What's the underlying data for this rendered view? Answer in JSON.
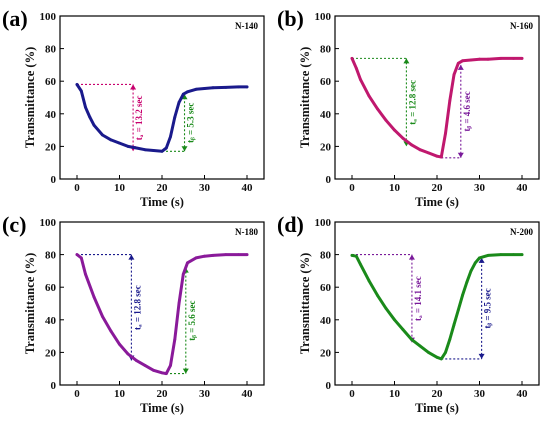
{
  "chart_data": [
    {
      "type": "line",
      "panel_label": "(a)",
      "sample": "N-140",
      "xlabel": "Time (s)",
      "ylabel": "Transmittance (%)",
      "xlim": [
        -4,
        44
      ],
      "ylim": [
        0,
        100
      ],
      "xticks": [
        0,
        10,
        20,
        30,
        40
      ],
      "yticks": [
        0,
        20,
        40,
        60,
        80,
        100
      ],
      "color": "#1a1a8c",
      "x": [
        0,
        1,
        2,
        3,
        4,
        6,
        8,
        10,
        12,
        14,
        16,
        18,
        20,
        21,
        22,
        23,
        24,
        25,
        26,
        28,
        30,
        32,
        35,
        38,
        40
      ],
      "y": [
        58,
        54,
        44,
        38,
        33,
        27,
        24,
        22,
        20,
        19,
        18,
        17.5,
        17,
        19,
        26,
        38,
        47,
        52,
        53.5,
        55,
        55.5,
        56,
        56.2,
        56.5,
        56.5
      ],
      "annotations": [
        {
          "text": "tₐ = 13.2 sec",
          "color": "#c8006e",
          "hline": {
            "x1": 0,
            "x2": 13.2,
            "y": 58
          },
          "vline": {
            "x": 13.2,
            "y1": 58,
            "y2": 17
          }
        },
        {
          "text": "tᵦ = 5.3 sec",
          "color": "#1a8a1a",
          "hline": {
            "x1": 20,
            "x2": 25.3,
            "y": 17
          },
          "vline": {
            "x": 25.3,
            "y1": 17,
            "y2": 52
          }
        }
      ]
    },
    {
      "type": "line",
      "panel_label": "(b)",
      "sample": "N-160",
      "xlabel": "Time (s)",
      "ylabel": "Transmittance (%)",
      "xlim": [
        -4,
        44
      ],
      "ylim": [
        0,
        100
      ],
      "xticks": [
        0,
        10,
        20,
        30,
        40
      ],
      "yticks": [
        0,
        20,
        40,
        60,
        80,
        100
      ],
      "color": "#c0186e",
      "x": [
        0,
        1,
        2,
        4,
        6,
        8,
        10,
        12,
        14,
        16,
        18,
        20,
        21,
        22,
        23,
        24,
        25,
        26,
        28,
        30,
        32,
        35,
        38,
        40
      ],
      "y": [
        74,
        68,
        61,
        51,
        43,
        36,
        30,
        25,
        21,
        18,
        16,
        14,
        13.5,
        28,
        48,
        64,
        71,
        72.5,
        73,
        73.5,
        73.5,
        74,
        74,
        74
      ],
      "annotations": [
        {
          "text": "tₐ = 12.8 sec",
          "color": "#1a8a1a",
          "hline": {
            "x1": 0,
            "x2": 12.8,
            "y": 74
          },
          "vline": {
            "x": 12.8,
            "y1": 74,
            "y2": 20
          }
        },
        {
          "text": "tᵦ = 4.6 sec",
          "color": "#7a1a9a",
          "hline": {
            "x1": 21,
            "x2": 25.6,
            "y": 13
          },
          "vline": {
            "x": 25.6,
            "y1": 13,
            "y2": 70
          }
        }
      ]
    },
    {
      "type": "line",
      "panel_label": "(c)",
      "sample": "N-180",
      "xlabel": "Time (s)",
      "ylabel": "Transmittance (%)",
      "xlim": [
        -4,
        44
      ],
      "ylim": [
        0,
        100
      ],
      "xticks": [
        0,
        10,
        20,
        30,
        40
      ],
      "yticks": [
        0,
        20,
        40,
        60,
        80,
        100
      ],
      "color": "#8a1a9a",
      "x": [
        0,
        1,
        2,
        4,
        6,
        8,
        10,
        12,
        14,
        16,
        18,
        20,
        21,
        22,
        23,
        24,
        25,
        26,
        28,
        30,
        32,
        35,
        38,
        40
      ],
      "y": [
        80,
        78,
        68,
        54,
        42,
        33,
        25,
        19,
        15,
        12,
        9,
        7.5,
        7,
        12,
        28,
        50,
        68,
        75,
        78,
        79,
        79.5,
        80,
        80,
        80
      ],
      "annotations": [
        {
          "text": "tₐ = 12.8 sec",
          "color": "#1a1a8c",
          "hline": {
            "x1": 0,
            "x2": 12.8,
            "y": 80
          },
          "vline": {
            "x": 12.8,
            "y1": 80,
            "y2": 15
          }
        },
        {
          "text": "tᵦ = 5.6 sec",
          "color": "#1a8a1a",
          "hline": {
            "x1": 20,
            "x2": 25.6,
            "y": 7
          },
          "vline": {
            "x": 25.6,
            "y1": 7,
            "y2": 72
          }
        }
      ]
    },
    {
      "type": "line",
      "panel_label": "(d)",
      "sample": "N-200",
      "xlabel": "Time (s)",
      "ylabel": "Transmittance (%)",
      "xlim": [
        -4,
        44
      ],
      "ylim": [
        0,
        100
      ],
      "xticks": [
        0,
        10,
        20,
        30,
        40
      ],
      "yticks": [
        0,
        20,
        40,
        60,
        80,
        100
      ],
      "color": "#1a8a1a",
      "x": [
        0,
        1,
        2,
        4,
        6,
        8,
        10,
        12,
        14,
        16,
        18,
        20,
        21,
        22,
        23,
        24,
        25,
        26,
        27,
        28,
        29,
        30,
        32,
        35,
        38,
        40
      ],
      "y": [
        79.5,
        79,
        74,
        64,
        55,
        47,
        40,
        34,
        28,
        24,
        20,
        17,
        16,
        20,
        28,
        37,
        46,
        55,
        63,
        70,
        75,
        78,
        79.5,
        80,
        80,
        80
      ],
      "annotations": [
        {
          "text": "tₐ = 14.1 sec",
          "color": "#7a1a9a",
          "hline": {
            "x1": 0,
            "x2": 14.1,
            "y": 80
          },
          "vline": {
            "x": 14.1,
            "y1": 80,
            "y2": 26
          }
        },
        {
          "text": "tᵦ = 9.5 sec",
          "color": "#1a1a8c",
          "hline": {
            "x1": 21,
            "x2": 30.5,
            "y": 16
          },
          "vline": {
            "x": 30.5,
            "y1": 16,
            "y2": 78
          }
        }
      ]
    }
  ]
}
